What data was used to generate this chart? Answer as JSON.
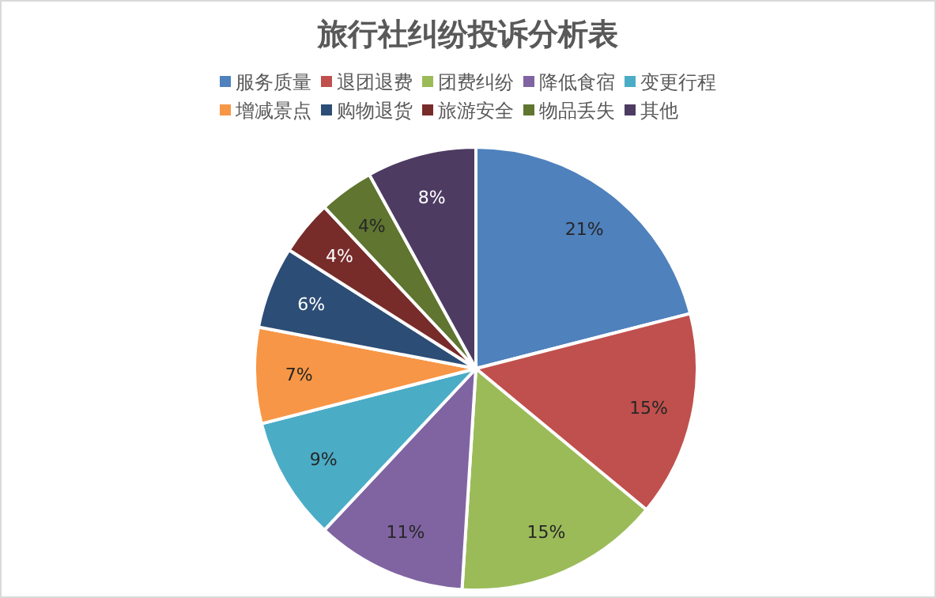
{
  "chart_data": {
    "type": "pie",
    "title": "旅行社纠纷投诉分析表",
    "categories": [
      "服务质量",
      "退团退费",
      "团费纠纷",
      "降低食宿",
      "变更行程",
      "增减景点",
      "购物退货",
      "旅游安全",
      "物品丢失",
      "其他"
    ],
    "values": [
      21,
      15,
      15,
      11,
      9,
      7,
      6,
      4,
      4,
      8
    ],
    "colors": [
      "#4f81bd",
      "#c0504d",
      "#9bbb59",
      "#8064a2",
      "#4bacc6",
      "#f79646",
      "#2c4d75",
      "#772c2a",
      "#5f7530",
      "#4d3b62"
    ],
    "value_labels": [
      "21%",
      "15%",
      "15%",
      "11%",
      "9%",
      "7%",
      "6%",
      "4%",
      "4%",
      "8%"
    ],
    "legend": "top"
  }
}
